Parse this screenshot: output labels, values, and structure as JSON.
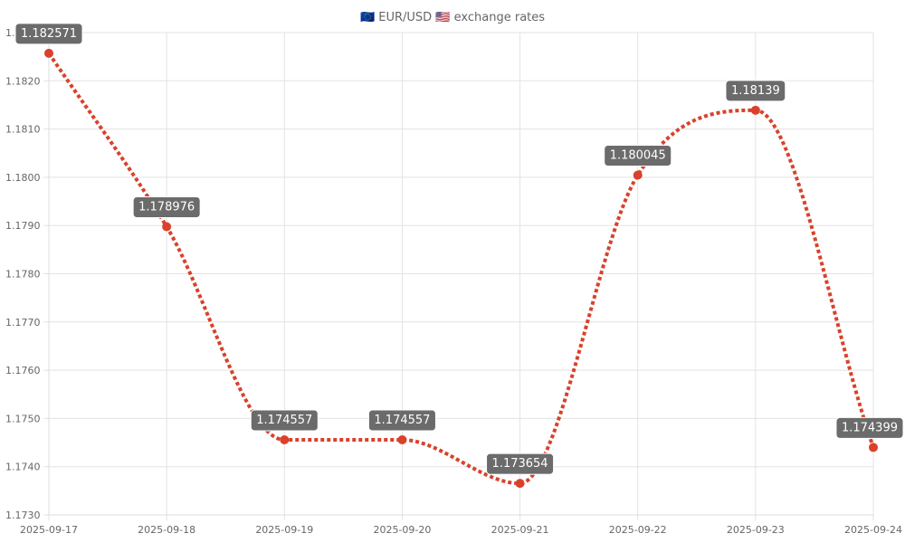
{
  "chart_data": {
    "type": "line",
    "title": "🇪🇺 EUR/USD 🇺🇸 exchange rates",
    "categories": [
      "2025-09-17",
      "2025-09-18",
      "2025-09-19",
      "2025-09-20",
      "2025-09-21",
      "2025-09-22",
      "2025-09-23",
      "2025-09-24"
    ],
    "series": [
      {
        "values": [
          1.182571,
          1.178976,
          1.174557,
          1.174557,
          1.173654,
          1.180045,
          1.18139,
          1.174399
        ],
        "labels": [
          "1.182571",
          "1.178976",
          "1.174557",
          "1.174557",
          "1.173654",
          "1.180045",
          "1.18139",
          "1.174399"
        ],
        "line_color": "#d9412b",
        "line_style": "dotted",
        "point_color": "#d9412b"
      }
    ],
    "y_ticks": [
      "1.1730",
      "1.1740",
      "1.1750",
      "1.1760",
      "1.1770",
      "1.1780",
      "1.1790",
      "1.1800",
      "1.1810",
      "1.1820",
      "1.1830"
    ],
    "ylim": [
      1.173,
      1.183
    ],
    "grid": true,
    "legend": "none",
    "label_box_color": "#6b6b6b",
    "label_text_color": "#ffffff"
  }
}
